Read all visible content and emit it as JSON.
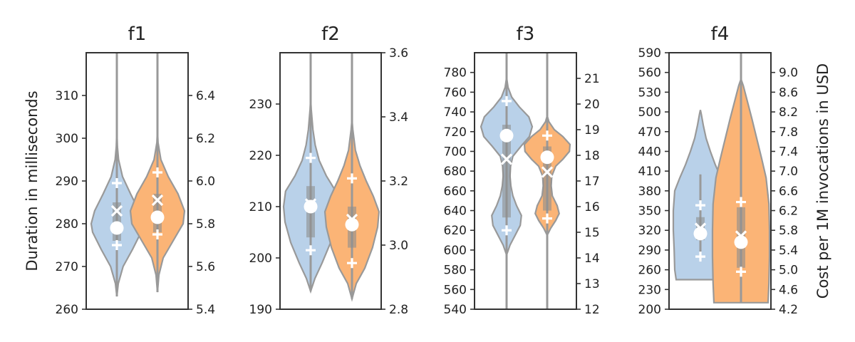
{
  "chart_data": {
    "type": "violin",
    "y_axis_left_label": "Duration in milliseconds",
    "y_axis_right_label": "Cost per 1M invocations in USD",
    "series_colors": [
      "#b9d1e9",
      "#fbb476"
    ],
    "panels": [
      {
        "title": "f1",
        "ylim": [
          260,
          320
        ],
        "yticks": [
          260,
          270,
          280,
          290,
          300,
          310
        ],
        "cost_lim": [
          5.4,
          6.6
        ],
        "cost_ticks": [
          5.4,
          5.6,
          5.8,
          6.0,
          6.2,
          6.4
        ],
        "violins": [
          {
            "max": 320,
            "min": 263,
            "q1": 276,
            "q3": 285,
            "median": 279,
            "mean": 279,
            "cross": 283,
            "p_low": 275,
            "p_high": 289.5,
            "profile": [
              [
                263,
                0.0
              ],
              [
                266,
                0.05
              ],
              [
                270,
                0.22
              ],
              [
                274,
                0.55
              ],
              [
                278,
                0.85
              ],
              [
                280,
                0.9
              ],
              [
                283,
                0.78
              ],
              [
                287,
                0.48
              ],
              [
                291,
                0.2
              ],
              [
                295,
                0.06
              ],
              [
                298,
                0.02
              ],
              [
                302,
                0.0
              ]
            ]
          },
          {
            "max": 320,
            "min": 264,
            "q1": 278,
            "q3": 287,
            "median": 282,
            "mean": 281.5,
            "cross": 285.5,
            "p_low": 277.5,
            "p_high": 292,
            "profile": [
              [
                264,
                0.0
              ],
              [
                268,
                0.05
              ],
              [
                272,
                0.2
              ],
              [
                276,
                0.55
              ],
              [
                280,
                0.9
              ],
              [
                283,
                0.95
              ],
              [
                287,
                0.72
              ],
              [
                291,
                0.38
              ],
              [
                295,
                0.12
              ],
              [
                299,
                0.02
              ],
              [
                302,
                0.0
              ]
            ]
          }
        ]
      },
      {
        "title": "f2",
        "ylim": [
          190,
          240
        ],
        "yticks": [
          190,
          200,
          210,
          220,
          230
        ],
        "cost_lim": [
          2.8,
          3.6
        ],
        "cost_ticks": [
          2.8,
          3.0,
          3.2,
          3.4,
          3.6
        ],
        "violins": [
          {
            "max": 240,
            "min": 193.5,
            "q1": 204,
            "q3": 214,
            "median": 210,
            "mean": 210,
            "cross": 210.5,
            "p_low": 201.5,
            "p_high": 219.5,
            "profile": [
              [
                193.5,
                0.0
              ],
              [
                196,
                0.15
              ],
              [
                199,
                0.4
              ],
              [
                203,
                0.7
              ],
              [
                207,
                0.9
              ],
              [
                210,
                0.95
              ],
              [
                213,
                0.88
              ],
              [
                216,
                0.55
              ],
              [
                219,
                0.3
              ],
              [
                222,
                0.16
              ],
              [
                225,
                0.08
              ],
              [
                229,
                0.02
              ],
              [
                231,
                0.0
              ]
            ]
          },
          {
            "max": 240,
            "min": 192,
            "q1": 202,
            "q3": 210,
            "median": 207,
            "mean": 206.5,
            "cross": 207.5,
            "p_low": 199,
            "p_high": 215.5,
            "profile": [
              [
                192,
                0.0
              ],
              [
                195,
                0.15
              ],
              [
                198,
                0.45
              ],
              [
                202,
                0.72
              ],
              [
                206,
                0.9
              ],
              [
                209,
                0.95
              ],
              [
                212,
                0.75
              ],
              [
                215,
                0.5
              ],
              [
                218,
                0.28
              ],
              [
                221,
                0.12
              ],
              [
                225,
                0.03
              ],
              [
                227,
                0.0
              ]
            ]
          }
        ]
      },
      {
        "title": "f3",
        "ylim": [
          540,
          800
        ],
        "yticks": [
          540,
          560,
          580,
          600,
          620,
          640,
          660,
          680,
          700,
          720,
          740,
          760,
          780
        ],
        "cost_lim": [
          12,
          22
        ],
        "cost_ticks": [
          12,
          13,
          14,
          15,
          16,
          17,
          18,
          19,
          20,
          21
        ],
        "violins": [
          {
            "max": 800,
            "min": 540,
            "q1": 633,
            "q3": 727,
            "median": 700,
            "mean": 716,
            "cross": 692,
            "p_low": 620,
            "p_high": 751,
            "profile": [
              [
                595,
                0.0
              ],
              [
                605,
                0.12
              ],
              [
                615,
                0.3
              ],
              [
                625,
                0.48
              ],
              [
                635,
                0.52
              ],
              [
                645,
                0.35
              ],
              [
                655,
                0.22
              ],
              [
                665,
                0.15
              ],
              [
                675,
                0.12
              ],
              [
                685,
                0.14
              ],
              [
                695,
                0.22
              ],
              [
                705,
                0.5
              ],
              [
                715,
                0.8
              ],
              [
                725,
                0.9
              ],
              [
                735,
                0.78
              ],
              [
                745,
                0.45
              ],
              [
                755,
                0.18
              ],
              [
                765,
                0.05
              ],
              [
                775,
                0.0
              ]
            ]
          },
          {
            "max": 800,
            "min": 540,
            "q1": 640,
            "q3": 705,
            "median": 695,
            "mean": 694,
            "cross": 679,
            "p_low": 632,
            "p_high": 716,
            "profile": [
              [
                615,
                0.0
              ],
              [
                622,
                0.12
              ],
              [
                630,
                0.3
              ],
              [
                637,
                0.42
              ],
              [
                645,
                0.35
              ],
              [
                655,
                0.18
              ],
              [
                665,
                0.14
              ],
              [
                675,
                0.16
              ],
              [
                685,
                0.3
              ],
              [
                692,
                0.55
              ],
              [
                700,
                0.78
              ],
              [
                707,
                0.8
              ],
              [
                715,
                0.55
              ],
              [
                722,
                0.25
              ],
              [
                730,
                0.06
              ],
              [
                736,
                0.0
              ]
            ]
          }
        ]
      },
      {
        "title": "f4",
        "ylim": [
          200,
          590
        ],
        "yticks": [
          200,
          230,
          260,
          290,
          320,
          350,
          380,
          410,
          440,
          470,
          500,
          530,
          560,
          590
        ],
        "cost_lim": [
          4.2,
          9.4
        ],
        "cost_ticks": [
          4.2,
          4.6,
          5.0,
          5.4,
          5.8,
          6.2,
          6.6,
          7.0,
          7.4,
          7.8,
          8.2,
          8.6,
          9.0
        ],
        "violins": [
          {
            "max": 405,
            "min": 280,
            "q1": 305,
            "q3": 340,
            "median": 322,
            "mean": 315,
            "cross": 323,
            "p_low": 280,
            "p_high": 358,
            "profile": [
              [
                245,
                0.85
              ],
              [
                260,
                0.9
              ],
              [
                290,
                0.92
              ],
              [
                320,
                0.95
              ],
              [
                350,
                0.95
              ],
              [
                380,
                0.9
              ],
              [
                400,
                0.72
              ],
              [
                420,
                0.52
              ],
              [
                440,
                0.35
              ],
              [
                460,
                0.2
              ],
              [
                480,
                0.1
              ],
              [
                497,
                0.03
              ],
              [
                503,
                0.0
              ]
            ]
          },
          {
            "max": 590,
            "min": 210,
            "q1": 263,
            "q3": 355,
            "median": 310,
            "mean": 302,
            "cross": 311,
            "p_low": 257,
            "p_high": 363,
            "profile": [
              [
                210,
                0.95
              ],
              [
                240,
                0.98
              ],
              [
                280,
                1.0
              ],
              [
                320,
                1.0
              ],
              [
                360,
                0.98
              ],
              [
                400,
                0.88
              ],
              [
                430,
                0.72
              ],
              [
                460,
                0.55
              ],
              [
                490,
                0.38
              ],
              [
                520,
                0.2
              ],
              [
                540,
                0.08
              ],
              [
                550,
                0.0
              ]
            ]
          }
        ]
      }
    ]
  }
}
